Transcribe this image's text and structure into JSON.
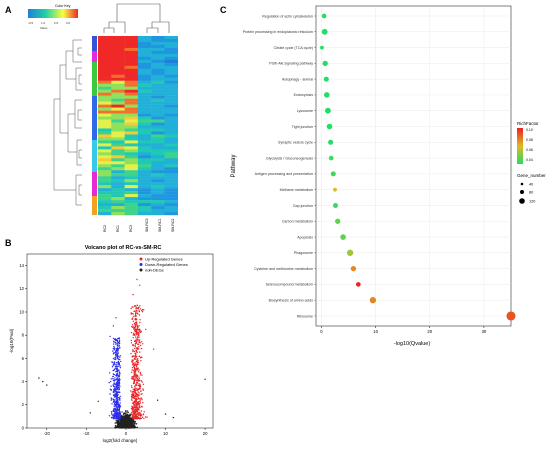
{
  "panel_labels": {
    "a": "A",
    "b": "B",
    "c": "C"
  },
  "chart_data": [
    {
      "type": "heatmap",
      "color_key": {
        "title": "Color Key",
        "ticks": [
          "-0.5",
          "1.0",
          "2.0",
          "3.0"
        ],
        "xlabel": "Value",
        "low_color": "#1f7fd8",
        "mid_color": "#1fd1a6",
        "high_color": "#f7ff3f",
        "top_color": "#f02828"
      },
      "columns": [
        "RC2",
        "RC1",
        "RC3",
        "SM-RC3",
        "SM-RC1",
        "SM-RC2"
      ],
      "row_cluster_colors": [
        "#3553d6",
        "#e32ce0",
        "#3cc93c",
        "#2f6be8",
        "#38c8e8",
        "#e82ad0",
        "#f3a023"
      ]
    },
    {
      "type": "scatter",
      "title": "Volcano plot of RC-vs-SM-RC",
      "xlabel": "log2(fold change)",
      "ylabel": "-log10(Pval)",
      "xlim": [
        -25,
        22
      ],
      "ylim": [
        0,
        15
      ],
      "xticks": [
        "-20",
        "-10",
        "0",
        "10",
        "20"
      ],
      "yticks": [
        "0",
        "2",
        "4",
        "6",
        "8",
        "10",
        "12",
        "14"
      ],
      "legend": [
        {
          "name": "Up-Regulated Genes",
          "color": "#e8262a"
        },
        {
          "name": "Down-Regulated Genes",
          "color": "#2b2be8"
        },
        {
          "name": "non-DEGs",
          "color": "#222222"
        }
      ],
      "legend_position": "top-right"
    },
    {
      "type": "scatter",
      "xlabel": "-log10(Qvalue)",
      "ylabel": "Pathway",
      "xlim": [
        -1,
        35
      ],
      "xticks": [
        "0",
        "10",
        "20",
        "30"
      ],
      "categories": [
        "Regulation of actin cytoskeleton",
        "Protein processing in endoplasmic reticulum",
        "Citrate cycle (TCA cycle)",
        "PI3K-Akt signaling pathway",
        "Autophagy - animal",
        "Endocytosis",
        "Lysosome",
        "Tight junction",
        "Synaptic vesicle cycle",
        "Glycolysis / Gluconeogenesis",
        "Antigen processing and presentation",
        "Methane metabolism",
        "Gap junction",
        "Carbon metabolism",
        "Apoptosis",
        "Phagosome",
        "Cysteine and methionine metabolism",
        "Selenocompound metabolism",
        "Biosynthesis of amino acids",
        "Ribosome"
      ],
      "values": [
        0.5,
        0.6,
        0.1,
        0.7,
        0.9,
        1.0,
        1.2,
        1.5,
        1.7,
        1.8,
        2.2,
        2.5,
        2.6,
        3.0,
        4.0,
        5.3,
        5.9,
        6.8,
        9.5,
        35.0
      ],
      "rich_factor": [
        0.04,
        0.04,
        0.04,
        0.04,
        0.04,
        0.04,
        0.04,
        0.04,
        0.04,
        0.045,
        0.045,
        0.07,
        0.045,
        0.05,
        0.05,
        0.06,
        0.08,
        0.1,
        0.08,
        0.09
      ],
      "gene_number": [
        20,
        40,
        10,
        30,
        25,
        35,
        40,
        35,
        25,
        20,
        25,
        10,
        25,
        30,
        35,
        50,
        30,
        20,
        50,
        130
      ],
      "legend_richfactor": {
        "title": "RichFactor",
        "ticks": [
          "0.10",
          "0.08",
          "0.06",
          "0.04"
        ],
        "high_color": "#ee2020",
        "low_color": "#22dd66"
      },
      "legend_gene_number": {
        "title": "Gene_number",
        "ticks": [
          "40",
          "80",
          "120"
        ]
      }
    }
  ]
}
